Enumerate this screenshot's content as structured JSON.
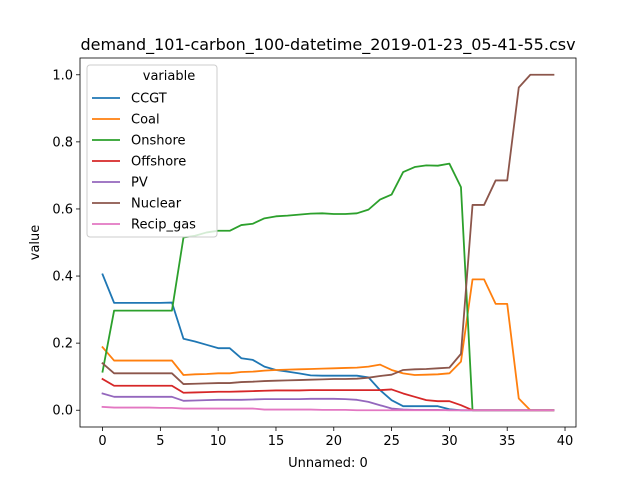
{
  "chart_data": {
    "type": "line",
    "title": "demand_101-carbon_100-datetime_2019-01-23_05-41-55.csv",
    "xlabel": "Unnamed: 0",
    "ylabel": "value",
    "xlim": [
      -1.95,
      40.95
    ],
    "ylim": [
      -0.05,
      1.05
    ],
    "xticks": [
      0,
      5,
      10,
      15,
      20,
      25,
      30,
      35,
      40
    ],
    "yticks": [
      0.0,
      0.2,
      0.4,
      0.6,
      0.8,
      1.0
    ],
    "xtick_labels": [
      "0",
      "5",
      "10",
      "15",
      "20",
      "25",
      "30",
      "35",
      "40"
    ],
    "ytick_labels": [
      "0.0",
      "0.2",
      "0.4",
      "0.6",
      "0.8",
      "1.0"
    ],
    "grid": false,
    "legend_title": "variable",
    "legend_position": "upper-left",
    "x": [
      0,
      1,
      2,
      3,
      4,
      5,
      6,
      7,
      8,
      9,
      10,
      11,
      12,
      13,
      14,
      15,
      16,
      17,
      18,
      19,
      20,
      21,
      22,
      23,
      24,
      25,
      26,
      27,
      28,
      29,
      30,
      31,
      32,
      33,
      34,
      35,
      36,
      37,
      38,
      39
    ],
    "series": [
      {
        "name": "CCGT",
        "color": "#1f77b4",
        "values": [
          0.405,
          0.32,
          0.32,
          0.32,
          0.32,
          0.32,
          0.321,
          0.213,
          0.205,
          0.195,
          0.185,
          0.185,
          0.155,
          0.15,
          0.13,
          0.12,
          0.115,
          0.11,
          0.104,
          0.103,
          0.103,
          0.103,
          0.103,
          0.098,
          0.06,
          0.03,
          0.012,
          0.012,
          0.012,
          0.012,
          0.003,
          0.0,
          0.0,
          0.0,
          0.0,
          0.0,
          0.0,
          0.0,
          0.0,
          0.0
        ]
      },
      {
        "name": "Coal",
        "color": "#ff7f0e",
        "values": [
          0.188,
          0.148,
          0.148,
          0.148,
          0.148,
          0.148,
          0.148,
          0.105,
          0.107,
          0.108,
          0.11,
          0.11,
          0.114,
          0.115,
          0.118,
          0.12,
          0.121,
          0.122,
          0.123,
          0.124,
          0.125,
          0.126,
          0.127,
          0.13,
          0.136,
          0.12,
          0.11,
          0.105,
          0.106,
          0.107,
          0.11,
          0.145,
          0.39,
          0.39,
          0.317,
          0.317,
          0.035,
          0.0,
          0.0,
          0.0
        ]
      },
      {
        "name": "Onshore",
        "color": "#2ca02c",
        "values": [
          0.115,
          0.297,
          0.297,
          0.297,
          0.297,
          0.297,
          0.297,
          0.515,
          0.52,
          0.53,
          0.535,
          0.535,
          0.552,
          0.556,
          0.572,
          0.578,
          0.58,
          0.583,
          0.586,
          0.587,
          0.585,
          0.585,
          0.587,
          0.598,
          0.628,
          0.643,
          0.71,
          0.725,
          0.73,
          0.729,
          0.735,
          0.665,
          0.0,
          0.0,
          0.0,
          0.0,
          0.0,
          0.0,
          0.0,
          0.0
        ]
      },
      {
        "name": "Offshore",
        "color": "#d62728",
        "values": [
          0.093,
          0.073,
          0.073,
          0.073,
          0.073,
          0.073,
          0.073,
          0.052,
          0.053,
          0.054,
          0.055,
          0.055,
          0.056,
          0.057,
          0.058,
          0.059,
          0.059,
          0.059,
          0.06,
          0.06,
          0.06,
          0.06,
          0.06,
          0.06,
          0.06,
          0.062,
          0.05,
          0.04,
          0.03,
          0.027,
          0.027,
          0.015,
          0.0,
          0.0,
          0.0,
          0.0,
          0.0,
          0.0,
          0.0,
          0.0
        ]
      },
      {
        "name": "PV",
        "color": "#9467bd",
        "values": [
          0.05,
          0.04,
          0.04,
          0.04,
          0.04,
          0.04,
          0.04,
          0.028,
          0.029,
          0.03,
          0.031,
          0.031,
          0.031,
          0.032,
          0.033,
          0.033,
          0.033,
          0.033,
          0.034,
          0.034,
          0.034,
          0.033,
          0.031,
          0.025,
          0.015,
          0.005,
          0.002,
          0.001,
          0.001,
          0.001,
          0.0,
          0.0,
          0.0,
          0.0,
          0.0,
          0.0,
          0.0,
          0.0,
          0.0,
          0.0
        ]
      },
      {
        "name": "Nuclear",
        "color": "#8c564b",
        "values": [
          0.14,
          0.11,
          0.11,
          0.11,
          0.11,
          0.11,
          0.11,
          0.078,
          0.079,
          0.08,
          0.081,
          0.081,
          0.084,
          0.085,
          0.087,
          0.088,
          0.089,
          0.09,
          0.091,
          0.092,
          0.093,
          0.093,
          0.094,
          0.097,
          0.102,
          0.106,
          0.12,
          0.122,
          0.123,
          0.125,
          0.127,
          0.168,
          0.612,
          0.612,
          0.685,
          0.685,
          0.962,
          1.0,
          1.0,
          1.0
        ]
      },
      {
        "name": "Recip_gas",
        "color": "#e377c2",
        "values": [
          0.01,
          0.008,
          0.008,
          0.008,
          0.008,
          0.007,
          0.007,
          0.005,
          0.005,
          0.005,
          0.005,
          0.005,
          0.005,
          0.005,
          0.002,
          0.002,
          0.002,
          0.002,
          0.002,
          0.001,
          0.001,
          0.001,
          0.0,
          0.0,
          0.0,
          0.0,
          0.0,
          0.0,
          0.0,
          0.0,
          0.0,
          0.0,
          0.0,
          0.0,
          0.0,
          0.0,
          0.0,
          0.0,
          0.0,
          0.0
        ]
      }
    ]
  }
}
